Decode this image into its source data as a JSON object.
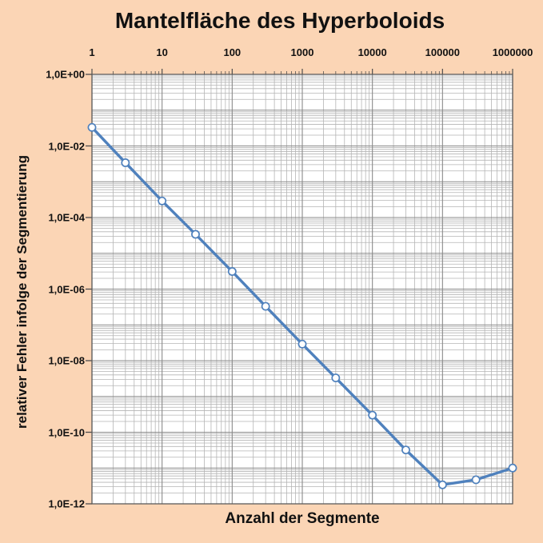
{
  "chart": {
    "title": "Mantelfläche des Hyperboloids",
    "x_axis_title": "Anzahl der Segmente",
    "y_axis_title": "relativer Fehler infolge der Segmentierung"
  },
  "chart_data": {
    "type": "line",
    "title": "Mantelfläche des Hyperboloids",
    "xlabel": "Anzahl der Segmente",
    "ylabel": "relativer Fehler infolge der Segmentierung",
    "x_scale": "log",
    "y_scale": "log",
    "xlim": [
      1,
      1000000
    ],
    "ylim": [
      1e-12,
      1
    ],
    "grid": "major-and-minor",
    "legend": "none",
    "x_tick_values": [
      1,
      10,
      100,
      1000,
      10000,
      100000,
      1000000
    ],
    "x_tick_labels": [
      "1",
      "10",
      "100",
      "1000",
      "10000",
      "100000",
      "1000000"
    ],
    "y_tick_values": [
      1,
      0.01,
      0.0001,
      1e-06,
      1e-08,
      1e-10,
      1e-12
    ],
    "y_tick_labels": [
      "1,0E+00",
      "1,0E-02",
      "1,0E-04",
      "1,0E-06",
      "1,0E-08",
      "1,0E-10",
      "1,0E-12"
    ],
    "series": [
      {
        "name": "relativer Fehler infolge der Segmentierung",
        "marker": "circle-open",
        "x": [
          1,
          3,
          10,
          30,
          100,
          300,
          1000,
          3000,
          10000,
          30000,
          100000,
          300000,
          1000000
        ],
        "y": [
          0.033,
          0.0034,
          0.00029,
          3.4e-05,
          3.1e-06,
          3.3e-07,
          2.9e-08,
          3.3e-09,
          3e-10,
          3.2e-11,
          3.4e-12,
          4.7e-12,
          1e-11
        ]
      }
    ],
    "colors": {
      "page_background": "#FBD5B5",
      "plot_background": "#FFFFFF",
      "series_line": "#4F81BD",
      "marker_fill": "#FFFFFF",
      "major_grid": "#8A8A8A",
      "minor_grid": "#B5B5B5",
      "plot_border": "#5A5A5A",
      "tick": "#4D4D4D",
      "text": "#111111"
    }
  }
}
